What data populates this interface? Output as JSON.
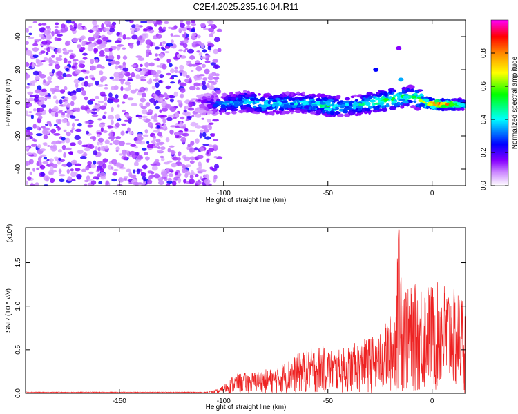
{
  "title": "C2E4.2025.235.16.04.R11",
  "chart_data": [
    {
      "type": "heatmap",
      "xlabel": "Height of straight line (km)",
      "ylabel": "Frequency (Hz)",
      "xlim": [
        -195,
        16
      ],
      "ylim": [
        -50,
        50
      ],
      "xticks": [
        -150,
        -100,
        -50,
        0
      ],
      "yticks": [
        -40,
        -20,
        0,
        20,
        40
      ],
      "colorbar": {
        "label": "Normalized spectral amplitude",
        "range": [
          0,
          1
        ],
        "ticks": [
          "0.0",
          "0.2",
          "0.4",
          "0.6",
          "0.8"
        ],
        "colors": [
          "#ffffff",
          "#8800ff",
          "#0000ff",
          "#00ffff",
          "#00ff00",
          "#ffff00",
          "#ff8800",
          "#ff0000",
          "#ff00ff"
        ]
      },
      "noise_region": {
        "x": [
          -195,
          -102
        ],
        "y": [
          -50,
          50
        ],
        "amplitude": [
          0.05,
          0.25
        ]
      },
      "ridge": [
        {
          "x": -112,
          "y": 0,
          "amp": 0.15
        },
        {
          "x": -100,
          "y": -1,
          "amp": 0.35
        },
        {
          "x": -90,
          "y": 1,
          "amp": 0.4
        },
        {
          "x": -80,
          "y": -1,
          "amp": 0.45
        },
        {
          "x": -70,
          "y": 0,
          "amp": 0.4
        },
        {
          "x": -60,
          "y": 0,
          "amp": 0.45
        },
        {
          "x": -50,
          "y": -2,
          "amp": 0.5
        },
        {
          "x": -40,
          "y": -2,
          "amp": 0.4
        },
        {
          "x": -30,
          "y": 0,
          "amp": 0.5
        },
        {
          "x": -20,
          "y": 2,
          "amp": 0.55
        },
        {
          "x": -10,
          "y": 4,
          "amp": 0.5
        },
        {
          "x": -3,
          "y": 0,
          "amp": 0.75
        },
        {
          "x": 3,
          "y": -1,
          "amp": 0.95
        },
        {
          "x": 10,
          "y": -1,
          "amp": 0.7
        },
        {
          "x": 16,
          "y": -1,
          "amp": 0.5
        }
      ],
      "isolated_blobs": [
        {
          "x": -27,
          "y": 20,
          "amp": 0.25
        },
        {
          "x": -15,
          "y": 14,
          "amp": 0.35
        },
        {
          "x": -16,
          "y": 33,
          "amp": 0.15
        }
      ]
    },
    {
      "type": "line",
      "xlabel": "Height of straight line (km)",
      "ylabel": "SNR (10 * v/v)",
      "multiplier": "(x10^4)",
      "multiplier_base": "(x10",
      "multiplier_exp": "4",
      "multiplier_close": ")",
      "xlim": [
        -195,
        16
      ],
      "ylim": [
        0,
        1.9
      ],
      "xticks": [
        -150,
        -100,
        -50,
        0
      ],
      "yticks": [
        "0.0",
        "0.5",
        "1.0",
        "1.5"
      ],
      "series_color": "#ee2222",
      "envelope": [
        {
          "x": -195,
          "y": 0.01
        },
        {
          "x": -110,
          "y": 0.01
        },
        {
          "x": -102,
          "y": 0.05
        },
        {
          "x": -95,
          "y": 0.22
        },
        {
          "x": -85,
          "y": 0.25
        },
        {
          "x": -75,
          "y": 0.3
        },
        {
          "x": -65,
          "y": 0.45
        },
        {
          "x": -55,
          "y": 0.55
        },
        {
          "x": -45,
          "y": 0.5
        },
        {
          "x": -35,
          "y": 0.6
        },
        {
          "x": -25,
          "y": 0.7
        },
        {
          "x": -18,
          "y": 1.0
        },
        {
          "x": -16,
          "y": 1.9
        },
        {
          "x": -12,
          "y": 1.2
        },
        {
          "x": -5,
          "y": 1.3
        },
        {
          "x": 0,
          "y": 1.25
        },
        {
          "x": 5,
          "y": 1.3
        },
        {
          "x": 10,
          "y": 1.2
        },
        {
          "x": 16,
          "y": 1.15
        }
      ]
    }
  ]
}
